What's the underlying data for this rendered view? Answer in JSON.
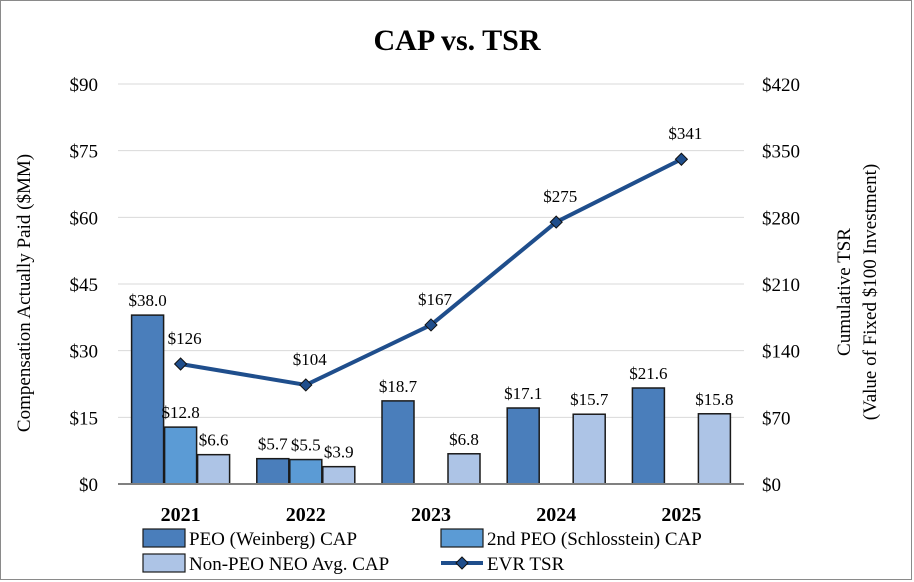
{
  "chart_data": {
    "type": "bar",
    "title": "CAP vs. TSR",
    "ylabel": "Compensation Actually Paid ($MM)",
    "y2label_line1": "Cumulative TSR",
    "y2label_line2": "(Value of Fixed $100 Investment)",
    "categories": [
      "2021",
      "2022",
      "2023",
      "2024",
      "2025"
    ],
    "ylim": [
      0,
      90
    ],
    "y2lim": [
      0,
      420
    ],
    "yticks": [
      0,
      15,
      30,
      45,
      60,
      75,
      90
    ],
    "ytick_labels": [
      "$0",
      "$15",
      "$30",
      "$45",
      "$60",
      "$75",
      "$90"
    ],
    "y2ticks": [
      0,
      70,
      140,
      210,
      280,
      350,
      420
    ],
    "y2tick_labels": [
      "$0",
      "$70",
      "$140",
      "$210",
      "$280",
      "$350",
      "$420"
    ],
    "grid": true,
    "legend_position": "bottom",
    "series": [
      {
        "name": "PEO (Weinberg) CAP",
        "kind": "bar",
        "color": "#4a7ebb",
        "values": [
          38.0,
          5.7,
          18.7,
          17.1,
          21.6
        ],
        "labels": [
          "$38.0",
          "$5.7",
          "$18.7",
          "$17.1",
          "$21.6"
        ]
      },
      {
        "name": "2nd PEO (Schlosstein) CAP",
        "kind": "bar",
        "color": "#5b9bd5",
        "values": [
          12.8,
          5.5,
          null,
          null,
          null
        ],
        "labels": [
          "$12.8",
          "$5.5",
          null,
          null,
          null
        ]
      },
      {
        "name": "Non-PEO NEO Avg. CAP",
        "kind": "bar",
        "color": "#adc4e6",
        "values": [
          6.6,
          3.9,
          6.8,
          15.7,
          15.8
        ],
        "labels": [
          "$6.6",
          "$3.9",
          "$6.8",
          "$15.7",
          "$15.8"
        ]
      },
      {
        "name": "EVR TSR",
        "kind": "line",
        "axis": "right",
        "color": "#1f4e8c",
        "values": [
          126,
          104,
          167,
          275,
          341
        ],
        "labels": [
          "$126",
          "$104",
          "$167",
          "$275",
          "$341"
        ]
      }
    ]
  }
}
